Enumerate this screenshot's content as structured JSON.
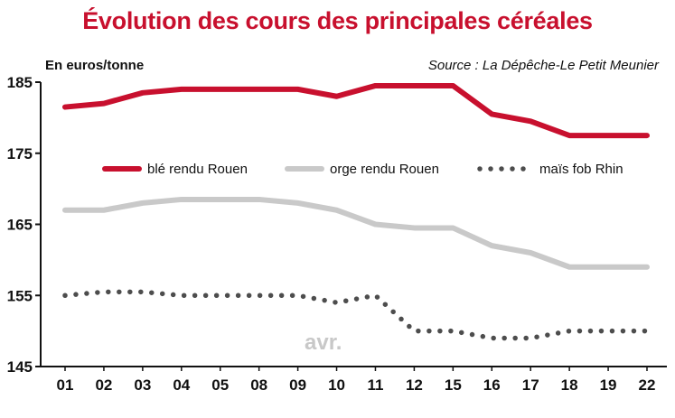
{
  "chart_data": {
    "type": "line",
    "title": "Évolution des cours des principales céréales",
    "ylabel": "En euros/tonne",
    "source": "Source : La Dépêche-Le Petit Meunier",
    "categories": [
      "01",
      "02",
      "03",
      "04",
      "05",
      "08",
      "09",
      "10",
      "11",
      "12",
      "15",
      "16",
      "17",
      "18",
      "19",
      "22"
    ],
    "ylim": [
      145,
      185
    ],
    "yticks": [
      "145",
      "155",
      "165",
      "175",
      "185"
    ],
    "annotation": "avr.",
    "grid": false,
    "legend_position": "top",
    "series": [
      {
        "name": "blé rendu Rouen",
        "color": "#c8102e",
        "style": "solid",
        "values": [
          181.5,
          182,
          183.5,
          184,
          184,
          184,
          184,
          183,
          184.5,
          184.5,
          184.5,
          180.5,
          179.5,
          177.5,
          177.5,
          177.5
        ]
      },
      {
        "name": "orge rendu Rouen",
        "color": "#c9c9c9",
        "style": "solid",
        "values": [
          167,
          167,
          168,
          168.5,
          168.5,
          168.5,
          168,
          167,
          165,
          164.5,
          164.5,
          162,
          161,
          159,
          159,
          159
        ]
      },
      {
        "name": "maïs fob Rhin",
        "color": "#4d4d4d",
        "style": "dotted",
        "values": [
          155,
          155.5,
          155.5,
          155,
          155,
          155,
          155,
          154,
          155,
          150,
          150,
          149,
          149,
          150,
          150,
          150
        ]
      }
    ]
  }
}
